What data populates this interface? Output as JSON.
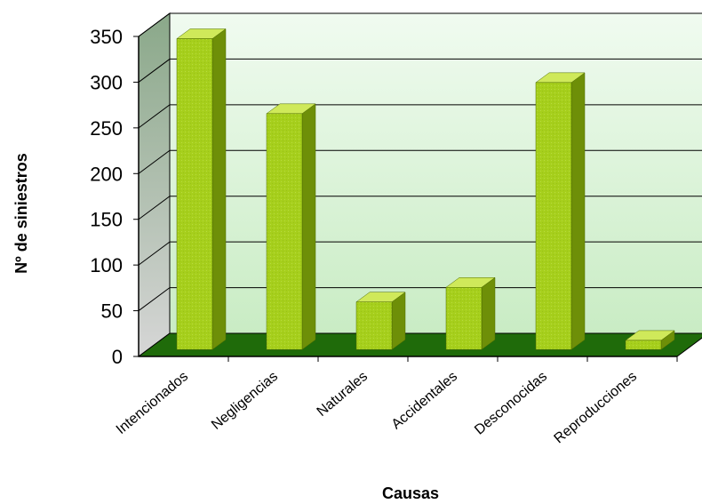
{
  "chart_data": {
    "type": "bar",
    "title": "",
    "xlabel": "Causas",
    "ylabel": "Nº de siniestros",
    "categories": [
      "Intencionados",
      "Negligencias",
      "Naturales",
      "Accidentales",
      "Desconocidas",
      "Reproducciones"
    ],
    "values": [
      340,
      258,
      52,
      68,
      292,
      10
    ],
    "ylim": [
      0,
      350
    ],
    "yticks": [
      "0",
      "50",
      "100",
      "150",
      "200",
      "250",
      "300",
      "350"
    ],
    "grid": true,
    "three_d": true,
    "colors": {
      "bar_front": "#a6cf1c",
      "bar_side": "#6e8f08",
      "bar_top": "#cfe95a",
      "floor": "#1f6b0a",
      "back_wall_top": "#f0fbf0",
      "back_wall_bottom": "#c9ecc4",
      "side_wall_top": "#8aa889",
      "side_wall_bottom": "#d6d6d6"
    }
  }
}
